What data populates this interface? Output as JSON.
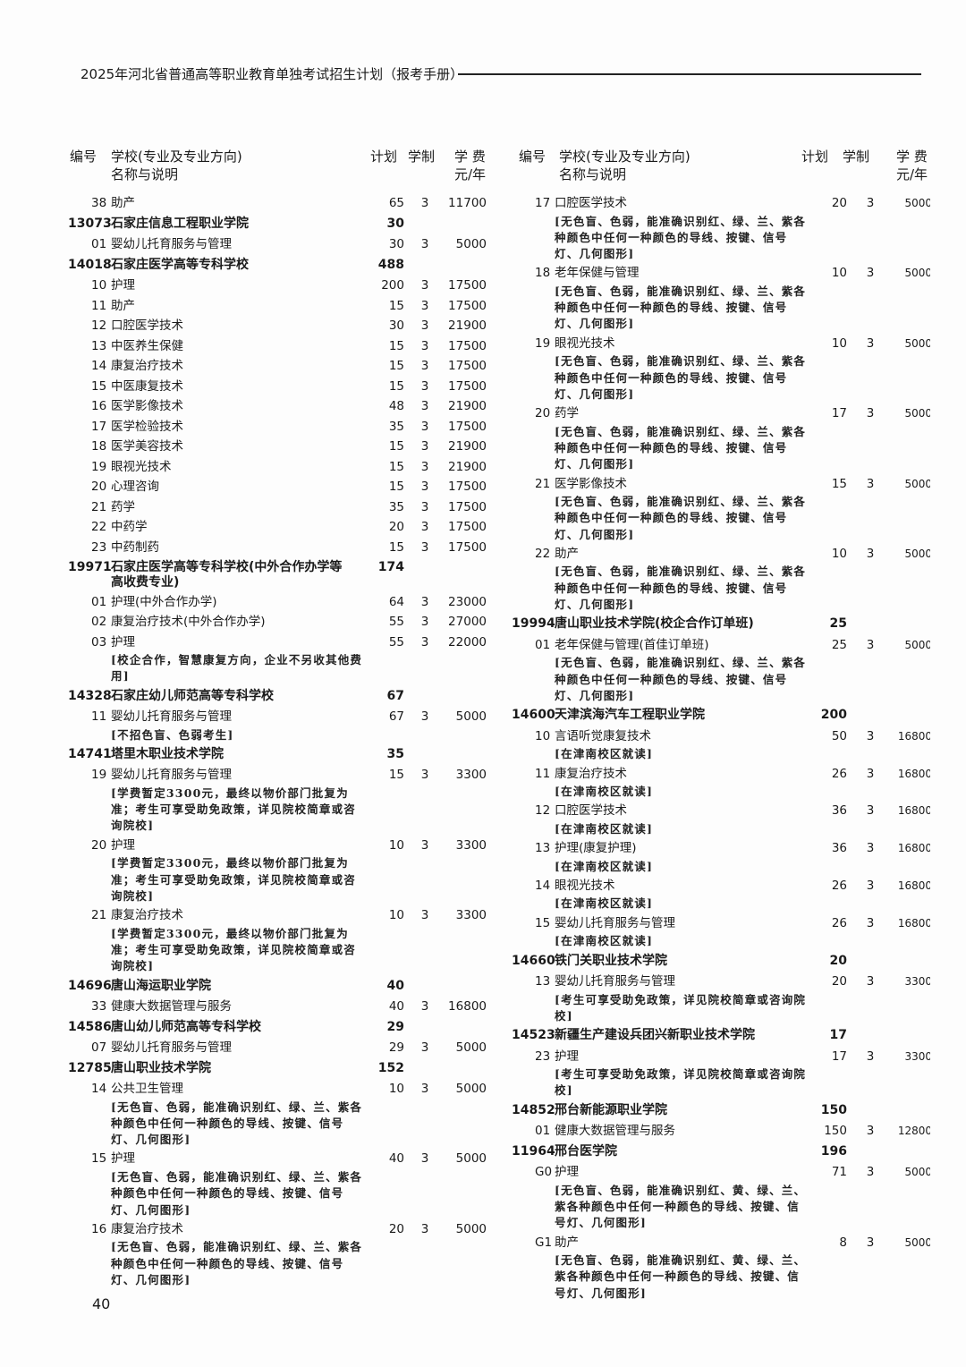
{
  "header": {
    "title": "2025年河北省普通高等职业教育单独考试招生计划（报考手册）"
  },
  "columns_header": {
    "code": "编号",
    "school_line1": "学校(专业及专业方向)",
    "school_line2": "名称与说明",
    "plan": "计划",
    "years": "学制",
    "fee_line1": "学 费",
    "fee_line2": "元/年"
  },
  "left": [
    {
      "type": "major",
      "code": "38",
      "name": "助产",
      "plan": "65",
      "years": "3",
      "fee": "11700"
    },
    {
      "type": "school",
      "code": "13073",
      "name": "石家庄信息工程职业学院",
      "plan": "30"
    },
    {
      "type": "major",
      "code": "01",
      "name": "婴幼儿托育服务与管理",
      "plan": "30",
      "years": "3",
      "fee": "5000"
    },
    {
      "type": "school",
      "code": "14018",
      "name": "石家庄医学高等专科学校",
      "plan": "488"
    },
    {
      "type": "major",
      "code": "10",
      "name": "护理",
      "plan": "200",
      "years": "3",
      "fee": "17500"
    },
    {
      "type": "major",
      "code": "11",
      "name": "助产",
      "plan": "15",
      "years": "3",
      "fee": "17500"
    },
    {
      "type": "major",
      "code": "12",
      "name": "口腔医学技术",
      "plan": "30",
      "years": "3",
      "fee": "21900"
    },
    {
      "type": "major",
      "code": "13",
      "name": "中医养生保健",
      "plan": "15",
      "years": "3",
      "fee": "17500"
    },
    {
      "type": "major",
      "code": "14",
      "name": "康复治疗技术",
      "plan": "15",
      "years": "3",
      "fee": "17500"
    },
    {
      "type": "major",
      "code": "15",
      "name": "中医康复技术",
      "plan": "15",
      "years": "3",
      "fee": "17500"
    },
    {
      "type": "major",
      "code": "16",
      "name": "医学影像技术",
      "plan": "48",
      "years": "3",
      "fee": "21900"
    },
    {
      "type": "major",
      "code": "17",
      "name": "医学检验技术",
      "plan": "35",
      "years": "3",
      "fee": "17500"
    },
    {
      "type": "major",
      "code": "18",
      "name": "医学美容技术",
      "plan": "15",
      "years": "3",
      "fee": "21900"
    },
    {
      "type": "major",
      "code": "19",
      "name": "眼视光技术",
      "plan": "15",
      "years": "3",
      "fee": "21900"
    },
    {
      "type": "major",
      "code": "20",
      "name": "心理咨询",
      "plan": "15",
      "years": "3",
      "fee": "17500"
    },
    {
      "type": "major",
      "code": "21",
      "name": "药学",
      "plan": "35",
      "years": "3",
      "fee": "17500"
    },
    {
      "type": "major",
      "code": "22",
      "name": "中药学",
      "plan": "20",
      "years": "3",
      "fee": "17500"
    },
    {
      "type": "major",
      "code": "23",
      "name": "中药制药",
      "plan": "15",
      "years": "3",
      "fee": "17500"
    },
    {
      "type": "school",
      "code": "19971",
      "name": "石家庄医学高等专科学校(中外合作办学等",
      "name2": "高收费专业)",
      "plan": "174"
    },
    {
      "type": "major",
      "code": "01",
      "name": "护理(中外合作办学)",
      "plan": "64",
      "years": "3",
      "fee": "23000"
    },
    {
      "type": "major",
      "code": "02",
      "name": "康复治疗技术(中外合作办学)",
      "plan": "55",
      "years": "3",
      "fee": "27000"
    },
    {
      "type": "major",
      "code": "03",
      "name": "护理",
      "plan": "55",
      "years": "3",
      "fee": "22000",
      "note": "[校企合作，智慧康复方向，企业不另收其他费用]"
    },
    {
      "type": "school",
      "code": "14328",
      "name": "石家庄幼儿师范高等专科学校",
      "plan": "67"
    },
    {
      "type": "major",
      "code": "11",
      "name": "婴幼儿托育服务与管理",
      "plan": "67",
      "years": "3",
      "fee": "5000",
      "note": "[不招色盲、色弱考生]"
    },
    {
      "type": "school",
      "code": "14741",
      "name": "塔里木职业技术学院",
      "plan": "35"
    },
    {
      "type": "major",
      "code": "19",
      "name": "婴幼儿托育服务与管理",
      "plan": "15",
      "years": "3",
      "fee": "3300",
      "note": "[学费暂定3300元，最终以物价部门批复为准；考生可享受助免政策，详见院校简章或咨询院校]"
    },
    {
      "type": "major",
      "code": "20",
      "name": "护理",
      "plan": "10",
      "years": "3",
      "fee": "3300",
      "note": "[学费暂定3300元，最终以物价部门批复为准；考生可享受助免政策，详见院校简章或咨询院校]"
    },
    {
      "type": "major",
      "code": "21",
      "name": "康复治疗技术",
      "plan": "10",
      "years": "3",
      "fee": "3300",
      "note": "[学费暂定3300元，最终以物价部门批复为准；考生可享受助免政策，详见院校简章或咨询院校]"
    },
    {
      "type": "school",
      "code": "14696",
      "name": "唐山海运职业学院",
      "plan": "40"
    },
    {
      "type": "major",
      "code": "33",
      "name": "健康大数据管理与服务",
      "plan": "40",
      "years": "3",
      "fee": "16800"
    },
    {
      "type": "school",
      "code": "14586",
      "name": "唐山幼儿师范高等专科学校",
      "plan": "29"
    },
    {
      "type": "major",
      "code": "07",
      "name": "婴幼儿托育服务与管理",
      "plan": "29",
      "years": "3",
      "fee": "5000"
    },
    {
      "type": "school",
      "code": "12785",
      "name": "唐山职业技术学院",
      "plan": "152"
    },
    {
      "type": "major",
      "code": "14",
      "name": "公共卫生管理",
      "plan": "10",
      "years": "3",
      "fee": "5000",
      "note": "[无色盲、色弱，能准确识别红、绿、兰、紫各种颜色中任何一种颜色的导线、按键、信号灯、几何图形]"
    },
    {
      "type": "major",
      "code": "15",
      "name": "护理",
      "plan": "40",
      "years": "3",
      "fee": "5000",
      "note": "[无色盲、色弱，能准确识别红、绿、兰、紫各种颜色中任何一种颜色的导线、按键、信号灯、几何图形]"
    },
    {
      "type": "major",
      "code": "16",
      "name": "康复治疗技术",
      "plan": "20",
      "years": "3",
      "fee": "5000",
      "note": "[无色盲、色弱，能准确识别红、绿、兰、紫各种颜色中任何一种颜色的导线、按键、信号灯、几何图形]"
    }
  ],
  "right": [
    {
      "type": "major",
      "code": "17",
      "name": "口腔医学技术",
      "plan": "20",
      "years": "3",
      "fee": "5000",
      "note": "[无色盲、色弱，能准确识别红、绿、兰、紫各种颜色中任何一种颜色的导线、按键、信号灯、几何图形]"
    },
    {
      "type": "major",
      "code": "18",
      "name": "老年保健与管理",
      "plan": "10",
      "years": "3",
      "fee": "5000",
      "note": "[无色盲、色弱，能准确识别红、绿、兰、紫各种颜色中任何一种颜色的导线、按键、信号灯、几何图形]"
    },
    {
      "type": "major",
      "code": "19",
      "name": "眼视光技术",
      "plan": "10",
      "years": "3",
      "fee": "5000",
      "note": "[无色盲、色弱，能准确识别红、绿、兰、紫各种颜色中任何一种颜色的导线、按键、信号灯、几何图形]"
    },
    {
      "type": "major",
      "code": "20",
      "name": "药学",
      "plan": "17",
      "years": "3",
      "fee": "5000",
      "note": "[无色盲、色弱，能准确识别红、绿、兰、紫各种颜色中任何一种颜色的导线、按键、信号灯、几何图形]"
    },
    {
      "type": "major",
      "code": "21",
      "name": "医学影像技术",
      "plan": "15",
      "years": "3",
      "fee": "5000",
      "note": "[无色盲、色弱，能准确识别红、绿、兰、紫各种颜色中任何一种颜色的导线、按键、信号灯、几何图形]"
    },
    {
      "type": "major",
      "code": "22",
      "name": "助产",
      "plan": "10",
      "years": "3",
      "fee": "5000",
      "note": "[无色盲、色弱，能准确识别红、绿、兰、紫各种颜色中任何一种颜色的导线、按键、信号灯、几何图形]"
    },
    {
      "type": "school",
      "code": "19994",
      "name": "唐山职业技术学院(校企合作订单班)",
      "plan": "25"
    },
    {
      "type": "major",
      "code": "01",
      "name": "老年保健与管理(首佳订单班)",
      "plan": "25",
      "years": "3",
      "fee": "5000",
      "note": "[无色盲、色弱，能准确识别红、绿、兰、紫各种颜色中任何一种颜色的导线、按键、信号灯、几何图形]"
    },
    {
      "type": "school",
      "code": "14600",
      "name": "天津滨海汽车工程职业学院",
      "plan": "200"
    },
    {
      "type": "major",
      "code": "10",
      "name": "言语听觉康复技术",
      "plan": "50",
      "years": "3",
      "fee": "16800",
      "note": "[在津南校区就读]"
    },
    {
      "type": "major",
      "code": "11",
      "name": "康复治疗技术",
      "plan": "26",
      "years": "3",
      "fee": "16800",
      "note": "[在津南校区就读]"
    },
    {
      "type": "major",
      "code": "12",
      "name": "口腔医学技术",
      "plan": "36",
      "years": "3",
      "fee": "16800",
      "note": "[在津南校区就读]"
    },
    {
      "type": "major",
      "code": "13",
      "name": "护理(康复护理)",
      "plan": "36",
      "years": "3",
      "fee": "16800",
      "note": "[在津南校区就读]"
    },
    {
      "type": "major",
      "code": "14",
      "name": "眼视光技术",
      "plan": "26",
      "years": "3",
      "fee": "16800",
      "note": "[在津南校区就读]"
    },
    {
      "type": "major",
      "code": "15",
      "name": "婴幼儿托育服务与管理",
      "plan": "26",
      "years": "3",
      "fee": "16800",
      "note": "[在津南校区就读]"
    },
    {
      "type": "school",
      "code": "14660",
      "name": "铁门关职业技术学院",
      "plan": "20"
    },
    {
      "type": "major",
      "code": "13",
      "name": "婴幼儿托育服务与管理",
      "plan": "20",
      "years": "3",
      "fee": "3300",
      "note": "[考生可享受助免政策，详见院校简章或咨询院校]"
    },
    {
      "type": "school",
      "code": "14523",
      "name": "新疆生产建设兵团兴新职业技术学院",
      "plan": "17"
    },
    {
      "type": "major",
      "code": "23",
      "name": "护理",
      "plan": "17",
      "years": "3",
      "fee": "3300",
      "note": "[考生可享受助免政策，详见院校简章或咨询院校]"
    },
    {
      "type": "school",
      "code": "14852",
      "name": "邢台新能源职业学院",
      "plan": "150"
    },
    {
      "type": "major",
      "code": "01",
      "name": "健康大数据管理与服务",
      "plan": "150",
      "years": "3",
      "fee": "12800"
    },
    {
      "type": "school",
      "code": "11964",
      "name": "邢台医学院",
      "plan": "196"
    },
    {
      "type": "major",
      "code": "G0",
      "name": "护理",
      "plan": "71",
      "years": "3",
      "fee": "5000",
      "note": "[无色盲、色弱，能准确识别红、黄、绿、兰、紫各种颜色中任何一种颜色的导线、按键、信号灯、几何图形]"
    },
    {
      "type": "major",
      "code": "G1",
      "name": "助产",
      "plan": "8",
      "years": "3",
      "fee": "5000",
      "note": "[无色盲、色弱，能准确识别红、黄、绿、兰、紫各种颜色中任何一种颜色的导线、按键、信号灯、几何图形]"
    }
  ],
  "footer": {
    "page_number": "40"
  }
}
